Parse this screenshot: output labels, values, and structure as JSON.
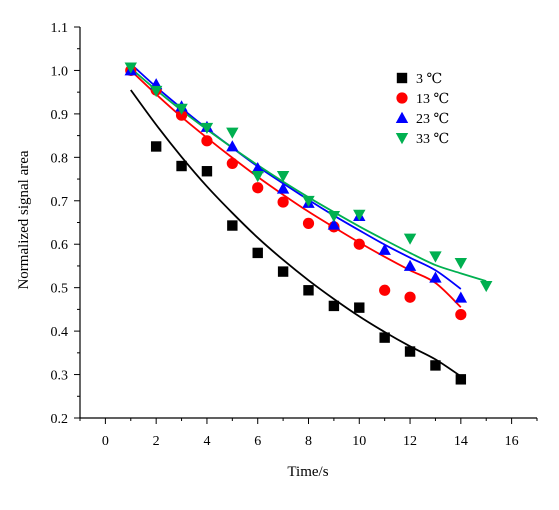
{
  "chart_data": {
    "type": "scatter",
    "xlabel": "Time/s",
    "ylabel": "Normalized signal area",
    "xlim": [
      -1,
      17
    ],
    "ylim": [
      0.2,
      1.1
    ],
    "xticks": [
      "0",
      "2",
      "4",
      "6",
      "8",
      "10",
      "12",
      "14",
      "16"
    ],
    "yticks": [
      "0.2",
      "0.3",
      "0.4",
      "0.5",
      "0.6",
      "0.7",
      "0.8",
      "0.9",
      "1.0",
      "1.1"
    ],
    "legend_position": "top-right",
    "grid": false,
    "series": [
      {
        "name": "3 ℃",
        "color": "#000000",
        "marker": "square",
        "points": [
          [
            2,
            0.825
          ],
          [
            3,
            0.78
          ],
          [
            4,
            0.768
          ],
          [
            5,
            0.643
          ],
          [
            6,
            0.58
          ],
          [
            7,
            0.537
          ],
          [
            8,
            0.494
          ],
          [
            9,
            0.458
          ],
          [
            10,
            0.454
          ],
          [
            11,
            0.385
          ],
          [
            12,
            0.353
          ],
          [
            13,
            0.321
          ],
          [
            14,
            0.289
          ]
        ],
        "fit": [
          [
            1.0,
            0.955
          ],
          [
            2,
            0.875
          ],
          [
            3,
            0.801
          ],
          [
            4,
            0.733
          ],
          [
            5,
            0.672
          ],
          [
            6,
            0.615
          ],
          [
            7,
            0.564
          ],
          [
            8,
            0.517
          ],
          [
            9,
            0.474
          ],
          [
            10,
            0.434
          ],
          [
            11,
            0.398
          ],
          [
            12,
            0.365
          ],
          [
            13,
            0.335
          ],
          [
            14,
            0.296
          ]
        ]
      },
      {
        "name": "13 ℃",
        "color": "#ff0000",
        "marker": "circle",
        "points": [
          [
            1,
            1.0
          ],
          [
            2,
            0.955
          ],
          [
            3,
            0.897
          ],
          [
            4,
            0.838
          ],
          [
            5,
            0.786
          ],
          [
            6,
            0.73
          ],
          [
            7,
            0.697
          ],
          [
            8,
            0.648
          ],
          [
            9,
            0.64
          ],
          [
            10,
            0.6
          ],
          [
            11,
            0.494
          ],
          [
            12,
            0.478
          ],
          [
            14,
            0.438
          ]
        ],
        "fit": [
          [
            1.0,
            1.0
          ],
          [
            2,
            0.945
          ],
          [
            3,
            0.893
          ],
          [
            4,
            0.845
          ],
          [
            5,
            0.799
          ],
          [
            6,
            0.755
          ],
          [
            7,
            0.714
          ],
          [
            8,
            0.675
          ],
          [
            9,
            0.639
          ],
          [
            10,
            0.604
          ],
          [
            11,
            0.571
          ],
          [
            12,
            0.54
          ],
          [
            13,
            0.511
          ],
          [
            14,
            0.455
          ]
        ]
      },
      {
        "name": "23 ℃",
        "color": "#0000ff",
        "marker": "triangle-up",
        "points": [
          [
            1,
            1.0
          ],
          [
            2,
            0.968
          ],
          [
            3,
            0.917
          ],
          [
            4,
            0.87
          ],
          [
            5,
            0.825
          ],
          [
            6,
            0.775
          ],
          [
            7,
            0.728
          ],
          [
            8,
            0.695
          ],
          [
            9,
            0.645
          ],
          [
            10,
            0.665
          ],
          [
            11,
            0.587
          ],
          [
            12,
            0.55
          ],
          [
            13,
            0.523
          ],
          [
            14,
            0.477
          ]
        ],
        "fit": [
          [
            1.0,
            1.015
          ],
          [
            2,
            0.962
          ],
          [
            3,
            0.913
          ],
          [
            4,
            0.866
          ],
          [
            5,
            0.822
          ],
          [
            6,
            0.779
          ],
          [
            7,
            0.74
          ],
          [
            8,
            0.702
          ],
          [
            9,
            0.666
          ],
          [
            10,
            0.632
          ],
          [
            11,
            0.599
          ],
          [
            12,
            0.569
          ],
          [
            13,
            0.54
          ],
          [
            14,
            0.497
          ]
        ]
      },
      {
        "name": "33 ℃",
        "color": "#00b050",
        "marker": "triangle-down",
        "points": [
          [
            1,
            1.007
          ],
          [
            2,
            0.953
          ],
          [
            3,
            0.912
          ],
          [
            4,
            0.868
          ],
          [
            5,
            0.857
          ],
          [
            6,
            0.757
          ],
          [
            7,
            0.757
          ],
          [
            8,
            0.7
          ],
          [
            9,
            0.665
          ],
          [
            10,
            0.668
          ],
          [
            12,
            0.613
          ],
          [
            13,
            0.572
          ],
          [
            14,
            0.557
          ],
          [
            15,
            0.504
          ]
        ],
        "fit": [
          [
            1.0,
            1.005
          ],
          [
            2,
            0.955
          ],
          [
            3,
            0.908
          ],
          [
            4,
            0.864
          ],
          [
            5,
            0.822
          ],
          [
            6,
            0.782
          ],
          [
            7,
            0.744
          ],
          [
            8,
            0.708
          ],
          [
            9,
            0.674
          ],
          [
            10,
            0.641
          ],
          [
            11,
            0.61
          ],
          [
            12,
            0.58
          ],
          [
            13,
            0.552
          ],
          [
            14,
            0.533
          ],
          [
            15,
            0.515
          ]
        ]
      }
    ]
  }
}
